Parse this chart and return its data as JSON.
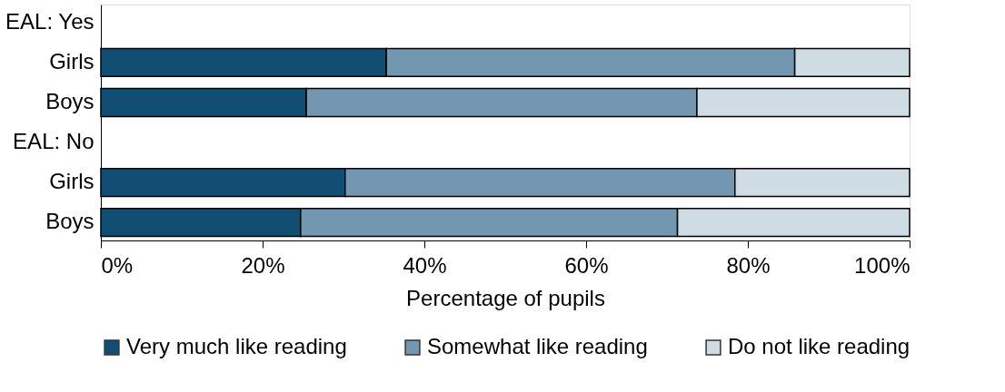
{
  "chart_data": {
    "type": "bar",
    "orientation": "horizontal",
    "stacked": true,
    "xlabel": "Percentage of pupils",
    "categories": [
      "EAL: Yes",
      "Girls",
      "Boys",
      "EAL: No",
      "Girls",
      "Boys"
    ],
    "series": [
      {
        "name": "Very much like reading",
        "color": "#124e74",
        "values": [
          null,
          35.3,
          25.4,
          null,
          30.2,
          24.7
        ]
      },
      {
        "name": "Somewhat like reading",
        "color": "#7397b0",
        "values": [
          null,
          50.5,
          48.3,
          null,
          48.2,
          46.6
        ]
      },
      {
        "name": "Do not like reading",
        "color": "#d0dce4",
        "values": [
          null,
          14.2,
          26.3,
          null,
          21.6,
          28.7
        ]
      }
    ],
    "xlim": [
      0,
      100
    ],
    "xticks": [
      {
        "value": 0,
        "label": "0%"
      },
      {
        "value": 20,
        "label": "20%"
      },
      {
        "value": 40,
        "label": "40%"
      },
      {
        "value": 60,
        "label": "60%"
      },
      {
        "value": 80,
        "label": "80%"
      },
      {
        "value": 100,
        "label": "100%"
      }
    ],
    "grid": false,
    "legend": "bottom"
  }
}
